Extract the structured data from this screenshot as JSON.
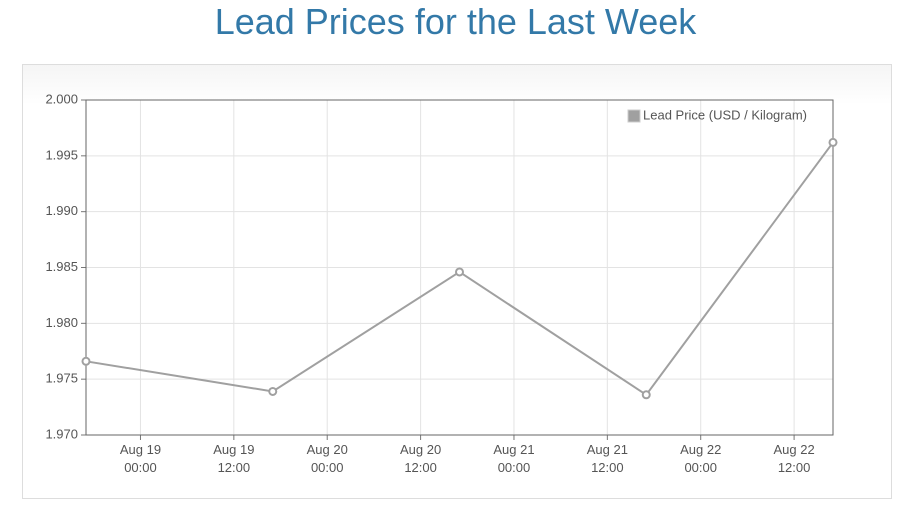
{
  "chart_data": {
    "type": "line",
    "title": "Lead Prices for the Last Week",
    "x": [
      -7,
      17,
      41,
      65,
      89
    ],
    "series": [
      {
        "name": "Lead Price (USD / Kilogram)",
        "color": "#a0a0a0",
        "values": [
          1.9766,
          1.9739,
          1.9846,
          1.9736,
          1.9962
        ]
      }
    ],
    "xlim": [
      -7,
      89
    ],
    "xticks": [
      {
        "value": 0,
        "label": "Aug 19\n00:00"
      },
      {
        "value": 12,
        "label": "Aug 19\n12:00"
      },
      {
        "value": 24,
        "label": "Aug 20\n00:00"
      },
      {
        "value": 36,
        "label": "Aug 20\n12:00"
      },
      {
        "value": 48,
        "label": "Aug 21\n00:00"
      },
      {
        "value": 60,
        "label": "Aug 21\n12:00"
      },
      {
        "value": 72,
        "label": "Aug 22\n00:00"
      },
      {
        "value": 84,
        "label": "Aug 22\n12:00"
      }
    ],
    "ylim": [
      1.97,
      2.0
    ],
    "yticks": [
      {
        "value": 1.97,
        "label": "1.970"
      },
      1.975,
      {
        "value": 1.98,
        "label": "1.980"
      },
      1.985,
      {
        "value": 1.99,
        "label": "1.990"
      },
      1.995,
      {
        "value": 2.0,
        "label": "2.000"
      }
    ],
    "grid": true,
    "legend": "top-right"
  }
}
